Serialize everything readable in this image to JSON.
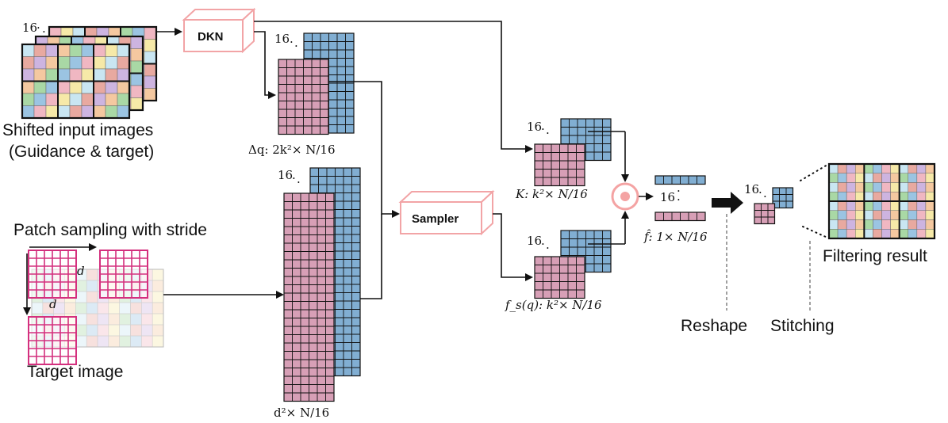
{
  "colors": {
    "pink": "#d79fb6",
    "blue": "#81aed2",
    "magenta": "#d4307e",
    "box_outline": "#f2a4a6",
    "mult_fill": "#f4a3a3",
    "grid_line": "#111111",
    "palette": [
      "#f0b7c2",
      "#f6e9a8",
      "#a9d8a5",
      "#9bc4e2",
      "#cdb4e0",
      "#f4c8a0",
      "#c9e6f2",
      "#e8a9a0"
    ]
  },
  "labels": {
    "input_caption_1": "Shifted input images",
    "input_caption_2": "(Guidance & target)",
    "patch_sampling": "Patch sampling with stride",
    "target_image": "Target image",
    "dkn": "DKN",
    "sampler": "Sampler",
    "reshape": "Reshape",
    "stitching": "Stitching",
    "filtering_result": "Filtering result",
    "d_label": "d",
    "sixteen": "16",
    "dots": "·  ·  ·"
  },
  "math": {
    "delta_q": "Δq: 2k²× N/16",
    "d2": "d²× N/16",
    "K": "K: k²× N/16",
    "fsq": "f_s(q): k²× N/16",
    "fhat": "f̂: 1× N/16"
  }
}
